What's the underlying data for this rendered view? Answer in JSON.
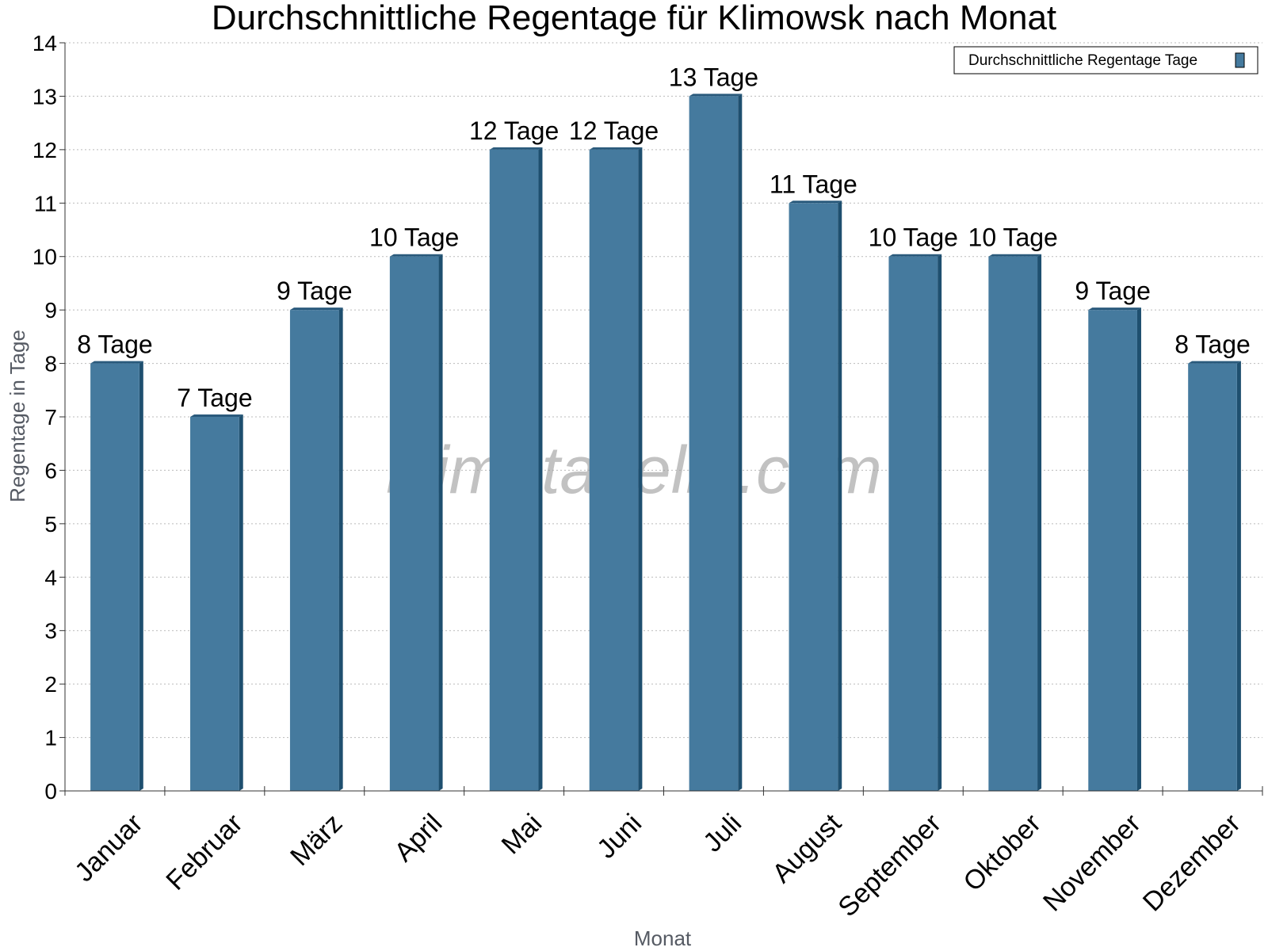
{
  "watermark": "klimatabelle.com",
  "colors": {
    "bar_front": "#457a9e",
    "bar_side": "#1e4f6f",
    "bar_top": "#2a5a7c",
    "grid": "#bbbbbb",
    "axis": "#333333"
  },
  "chart_data": {
    "type": "bar",
    "title": "Durchschnittliche Regentage für Klimowsk nach Monat",
    "xlabel": "Monat",
    "ylabel": "Regentage in Tage",
    "ylim": [
      0,
      14
    ],
    "yticks": [
      0,
      1,
      2,
      3,
      4,
      5,
      6,
      7,
      8,
      9,
      10,
      11,
      12,
      13,
      14
    ],
    "grid": true,
    "legend_position": "top-right",
    "categories": [
      "Januar",
      "Februar",
      "März",
      "April",
      "Mai",
      "Juni",
      "Juli",
      "August",
      "September",
      "Oktober",
      "November",
      "Dezember"
    ],
    "series": [
      {
        "name": "Durchschnittliche Regentage Tage",
        "values": [
          8,
          7,
          9,
          10,
          12,
          12,
          13,
          11,
          10,
          10,
          9,
          8
        ],
        "data_labels": [
          "8 Tage",
          "7 Tage",
          "9 Tage",
          "10 Tage",
          "12 Tage",
          "12 Tage",
          "13 Tage",
          "11 Tage",
          "10 Tage",
          "10 Tage",
          "9 Tage",
          "8 Tage"
        ]
      }
    ]
  }
}
